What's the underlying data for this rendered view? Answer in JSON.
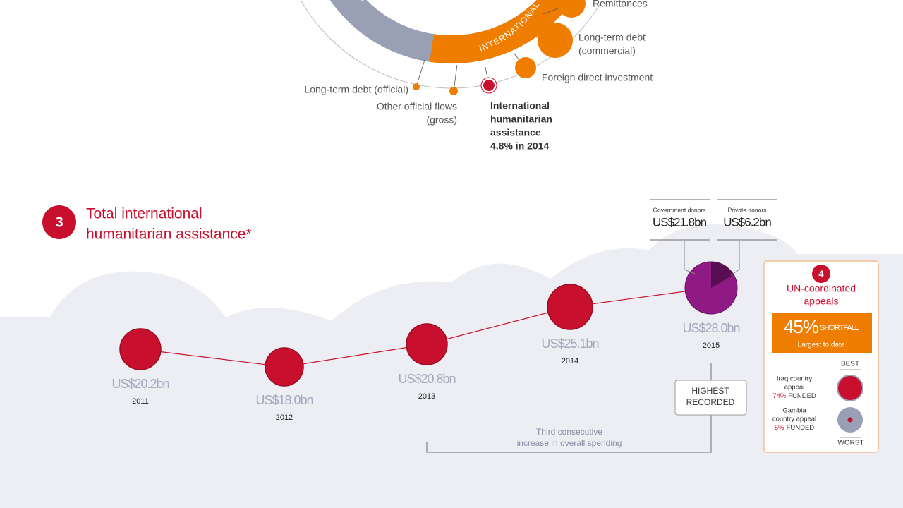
{
  "ring": {
    "left": "NON-G",
    "right": "INTERNATIONAL"
  },
  "flows": [
    {
      "lines": [
        "Remittances"
      ]
    },
    {
      "lines": [
        "Long-term debt",
        "(commercial)"
      ]
    },
    {
      "lines": [
        "Foreign direct investment"
      ]
    },
    {
      "lines": [
        "Long-term debt (official)"
      ]
    },
    {
      "lines": [
        "Other official flows",
        "(gross)"
      ]
    },
    {
      "lines": [
        "International",
        "humanitarian",
        "assistance",
        "4.8% in 2014"
      ]
    }
  ],
  "section3": {
    "number": "3",
    "title": [
      "Total international",
      "humanitarian assistance*"
    ],
    "timeline": [
      {
        "amount": "US$20.2bn",
        "year": "2011"
      },
      {
        "amount": "US$18.0bn",
        "year": "2012"
      },
      {
        "amount": "US$20.8bn",
        "year": "2013"
      },
      {
        "amount": "US$25.1bn",
        "year": "2014"
      },
      {
        "amount": "US$28.0bn",
        "year": "2015"
      }
    ],
    "donors": [
      {
        "label": "Government donors",
        "amount": "US$21.8bn"
      },
      {
        "label": "Private donors",
        "amount": "US$6.2bn"
      }
    ],
    "record": [
      "HIGHEST",
      "RECORDED"
    ],
    "note": [
      "Third consecutive",
      "increase in overall spending"
    ]
  },
  "section4": {
    "number": "4",
    "title": [
      "UN-coordinated",
      "appeals"
    ],
    "shortfall": {
      "percent": "45%",
      "label": "SHORTFALL",
      "note": "Largest to date"
    },
    "best": "BEST",
    "worst": "WORST",
    "appeals": [
      {
        "lines": [
          "Iraq country",
          "appeal"
        ],
        "percent": "74%",
        "funded": "FUNDED"
      },
      {
        "lines": [
          "Gambia",
          "country appeal"
        ],
        "percent": "5%",
        "funded": "FUNDED"
      }
    ]
  }
}
